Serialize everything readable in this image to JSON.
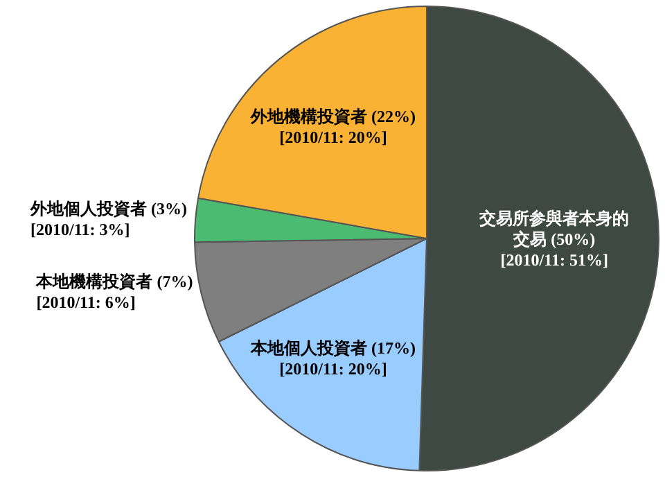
{
  "chart_data": {
    "type": "pie",
    "categories": [
      "交易所参與者本身的交易",
      "本地個人投資者",
      "本地機構投資者",
      "外地個人投資者",
      "外地機構投資者"
    ],
    "values": [
      50,
      17,
      7,
      3,
      22
    ],
    "colors": [
      "#3f4943",
      "#99ccff",
      "#7f7f7f",
      "#4cbb72",
      "#f9b233"
    ],
    "value_labels": [
      "(50%)",
      "(17%)",
      "(7%)",
      "(3%)",
      "(22%)"
    ],
    "annotations": [
      "[2010/11: 51%]",
      "[2010/11: 20%]",
      "[2010/11: 6%]",
      "[2010/11: 3%]",
      "[2010/11: 20%]"
    ],
    "legend": false
  }
}
